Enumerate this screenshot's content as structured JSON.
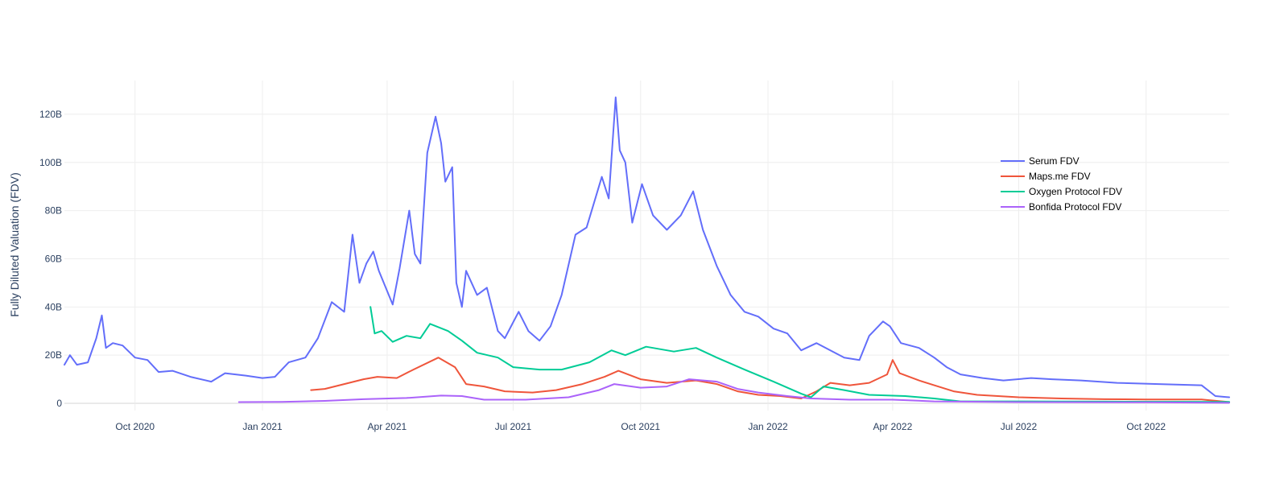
{
  "chart_data": {
    "type": "line",
    "title": "",
    "xlabel": "",
    "ylabel": "Fully Diluted Valuation (FDV)",
    "xlim": [
      "2020-08-11",
      "2022-11-30"
    ],
    "ylim": [
      -3000000000,
      134000000000
    ],
    "x_ticks": [
      {
        "date": "2020-10-01",
        "label": "Oct 2020"
      },
      {
        "date": "2021-01-01",
        "label": "Jan 2021"
      },
      {
        "date": "2021-04-01",
        "label": "Apr 2021"
      },
      {
        "date": "2021-07-01",
        "label": "Jul 2021"
      },
      {
        "date": "2021-10-01",
        "label": "Oct 2021"
      },
      {
        "date": "2022-01-01",
        "label": "Jan 2022"
      },
      {
        "date": "2022-04-01",
        "label": "Apr 2022"
      },
      {
        "date": "2022-07-01",
        "label": "Jul 2022"
      },
      {
        "date": "2022-10-01",
        "label": "Oct 2022"
      }
    ],
    "y_ticks": [
      {
        "value": 0,
        "label": "0"
      },
      {
        "value": 20000000000,
        "label": "20B"
      },
      {
        "value": 40000000000,
        "label": "40B"
      },
      {
        "value": 60000000000,
        "label": "60B"
      },
      {
        "value": 80000000000,
        "label": "80B"
      },
      {
        "value": 100000000000,
        "label": "100B"
      },
      {
        "value": 120000000000,
        "label": "120B"
      }
    ],
    "grid": true,
    "legend_position": "top-right",
    "series": [
      {
        "name": "Serum FDV",
        "color": "#636efa",
        "points": [
          [
            "2020-08-11",
            16000000000
          ],
          [
            "2020-08-15",
            20000000000
          ],
          [
            "2020-08-20",
            16000000000
          ],
          [
            "2020-08-28",
            17000000000
          ],
          [
            "2020-09-03",
            27000000000
          ],
          [
            "2020-09-07",
            36500000000
          ],
          [
            "2020-09-10",
            23000000000
          ],
          [
            "2020-09-15",
            25000000000
          ],
          [
            "2020-09-22",
            24000000000
          ],
          [
            "2020-10-01",
            19000000000
          ],
          [
            "2020-10-10",
            18000000000
          ],
          [
            "2020-10-18",
            13000000000
          ],
          [
            "2020-10-28",
            13500000000
          ],
          [
            "2020-11-10",
            11000000000
          ],
          [
            "2020-11-25",
            9000000000
          ],
          [
            "2020-12-05",
            12500000000
          ],
          [
            "2020-12-20",
            11500000000
          ],
          [
            "2021-01-01",
            10500000000
          ],
          [
            "2021-01-10",
            11000000000
          ],
          [
            "2021-01-20",
            17000000000
          ],
          [
            "2021-02-01",
            19000000000
          ],
          [
            "2021-02-10",
            27000000000
          ],
          [
            "2021-02-20",
            42000000000
          ],
          [
            "2021-03-01",
            38000000000
          ],
          [
            "2021-03-07",
            70000000000
          ],
          [
            "2021-03-12",
            50000000000
          ],
          [
            "2021-03-17",
            58000000000
          ],
          [
            "2021-03-22",
            63000000000
          ],
          [
            "2021-03-26",
            55000000000
          ],
          [
            "2021-04-05",
            41000000000
          ],
          [
            "2021-04-10",
            56000000000
          ],
          [
            "2021-04-17",
            80000000000
          ],
          [
            "2021-04-21",
            62000000000
          ],
          [
            "2021-04-25",
            58000000000
          ],
          [
            "2021-04-30",
            104000000000
          ],
          [
            "2021-05-06",
            119000000000
          ],
          [
            "2021-05-10",
            108000000000
          ],
          [
            "2021-05-13",
            92000000000
          ],
          [
            "2021-05-18",
            98000000000
          ],
          [
            "2021-05-21",
            50000000000
          ],
          [
            "2021-05-25",
            40000000000
          ],
          [
            "2021-05-28",
            55000000000
          ],
          [
            "2021-06-05",
            45000000000
          ],
          [
            "2021-06-12",
            48000000000
          ],
          [
            "2021-06-20",
            30000000000
          ],
          [
            "2021-06-25",
            27000000000
          ],
          [
            "2021-07-05",
            38000000000
          ],
          [
            "2021-07-12",
            30000000000
          ],
          [
            "2021-07-20",
            26000000000
          ],
          [
            "2021-07-28",
            32000000000
          ],
          [
            "2021-08-05",
            45000000000
          ],
          [
            "2021-08-15",
            70000000000
          ],
          [
            "2021-08-23",
            73000000000
          ],
          [
            "2021-09-03",
            94000000000
          ],
          [
            "2021-09-08",
            85000000000
          ],
          [
            "2021-09-13",
            127000000000
          ],
          [
            "2021-09-16",
            105000000000
          ],
          [
            "2021-09-20",
            100000000000
          ],
          [
            "2021-09-25",
            75000000000
          ],
          [
            "2021-10-02",
            91000000000
          ],
          [
            "2021-10-10",
            78000000000
          ],
          [
            "2021-10-20",
            72000000000
          ],
          [
            "2021-10-30",
            78000000000
          ],
          [
            "2021-11-08",
            88000000000
          ],
          [
            "2021-11-15",
            72000000000
          ],
          [
            "2021-11-25",
            57000000000
          ],
          [
            "2021-12-05",
            45000000000
          ],
          [
            "2021-12-15",
            38000000000
          ],
          [
            "2021-12-25",
            36000000000
          ],
          [
            "2022-01-05",
            31000000000
          ],
          [
            "2022-01-15",
            29000000000
          ],
          [
            "2022-01-25",
            22000000000
          ],
          [
            "2022-02-05",
            25000000000
          ],
          [
            "2022-02-15",
            22000000000
          ],
          [
            "2022-02-25",
            19000000000
          ],
          [
            "2022-03-08",
            18000000000
          ],
          [
            "2022-03-15",
            28000000000
          ],
          [
            "2022-03-25",
            34000000000
          ],
          [
            "2022-03-30",
            32000000000
          ],
          [
            "2022-04-07",
            25000000000
          ],
          [
            "2022-04-20",
            23000000000
          ],
          [
            "2022-05-01",
            19000000000
          ],
          [
            "2022-05-10",
            15000000000
          ],
          [
            "2022-05-20",
            12000000000
          ],
          [
            "2022-06-05",
            10500000000
          ],
          [
            "2022-06-20",
            9500000000
          ],
          [
            "2022-07-10",
            10500000000
          ],
          [
            "2022-07-25",
            10000000000
          ],
          [
            "2022-08-15",
            9500000000
          ],
          [
            "2022-09-10",
            8500000000
          ],
          [
            "2022-10-10",
            8000000000
          ],
          [
            "2022-11-10",
            7500000000
          ],
          [
            "2022-11-20",
            3000000000
          ],
          [
            "2022-11-30",
            2500000000
          ]
        ]
      },
      {
        "name": "Maps.me FDV",
        "color": "#ef553b",
        "points": [
          [
            "2021-02-05",
            5500000000
          ],
          [
            "2021-02-15",
            6000000000
          ],
          [
            "2021-03-01",
            8000000000
          ],
          [
            "2021-03-15",
            10000000000
          ],
          [
            "2021-03-25",
            11000000000
          ],
          [
            "2021-04-08",
            10500000000
          ],
          [
            "2021-04-20",
            14000000000
          ],
          [
            "2021-05-08",
            19000000000
          ],
          [
            "2021-05-20",
            15000000000
          ],
          [
            "2021-05-28",
            8000000000
          ],
          [
            "2021-06-10",
            7000000000
          ],
          [
            "2021-06-25",
            5000000000
          ],
          [
            "2021-07-15",
            4500000000
          ],
          [
            "2021-08-01",
            5500000000
          ],
          [
            "2021-08-20",
            8000000000
          ],
          [
            "2021-09-05",
            11000000000
          ],
          [
            "2021-09-15",
            13500000000
          ],
          [
            "2021-10-01",
            10000000000
          ],
          [
            "2021-10-20",
            8500000000
          ],
          [
            "2021-11-10",
            9500000000
          ],
          [
            "2021-11-25",
            8000000000
          ],
          [
            "2021-12-10",
            5000000000
          ],
          [
            "2021-12-25",
            3500000000
          ],
          [
            "2022-01-10",
            3000000000
          ],
          [
            "2022-01-25",
            2000000000
          ],
          [
            "2022-02-05",
            5000000000
          ],
          [
            "2022-02-15",
            8500000000
          ],
          [
            "2022-03-01",
            7500000000
          ],
          [
            "2022-03-15",
            8500000000
          ],
          [
            "2022-03-28",
            12000000000
          ],
          [
            "2022-04-01",
            18000000000
          ],
          [
            "2022-04-06",
            12500000000
          ],
          [
            "2022-04-20",
            9500000000
          ],
          [
            "2022-05-01",
            7500000000
          ],
          [
            "2022-05-15",
            5000000000
          ],
          [
            "2022-06-01",
            3500000000
          ],
          [
            "2022-07-01",
            2500000000
          ],
          [
            "2022-08-01",
            2000000000
          ],
          [
            "2022-09-01",
            1700000000
          ],
          [
            "2022-10-01",
            1600000000
          ],
          [
            "2022-11-10",
            1600000000
          ],
          [
            "2022-11-30",
            500000000
          ]
        ]
      },
      {
        "name": "Oxygen Protocol FDV",
        "color": "#00cc96",
        "points": [
          [
            "2021-03-20",
            40000000000
          ],
          [
            "2021-03-23",
            29000000000
          ],
          [
            "2021-03-28",
            30000000000
          ],
          [
            "2021-04-05",
            25500000000
          ],
          [
            "2021-04-15",
            28000000000
          ],
          [
            "2021-04-25",
            27000000000
          ],
          [
            "2021-05-02",
            33000000000
          ],
          [
            "2021-05-15",
            30000000000
          ],
          [
            "2021-05-25",
            26000000000
          ],
          [
            "2021-06-05",
            21000000000
          ],
          [
            "2021-06-20",
            19000000000
          ],
          [
            "2021-07-01",
            15000000000
          ],
          [
            "2021-07-20",
            14000000000
          ],
          [
            "2021-08-05",
            14000000000
          ],
          [
            "2021-08-25",
            17000000000
          ],
          [
            "2021-09-10",
            22000000000
          ],
          [
            "2021-09-20",
            20000000000
          ],
          [
            "2021-10-05",
            23500000000
          ],
          [
            "2021-10-25",
            21500000000
          ],
          [
            "2021-11-10",
            23000000000
          ],
          [
            "2021-11-25",
            19000000000
          ],
          [
            "2021-12-15",
            14000000000
          ],
          [
            "2022-01-05",
            9000000000
          ],
          [
            "2022-01-25",
            4000000000
          ],
          [
            "2022-02-01",
            2500000000
          ],
          [
            "2022-02-10",
            7000000000
          ],
          [
            "2022-02-25",
            5500000000
          ],
          [
            "2022-03-15",
            3500000000
          ],
          [
            "2022-04-10",
            3000000000
          ],
          [
            "2022-05-01",
            2000000000
          ],
          [
            "2022-05-20",
            800000000
          ],
          [
            "2022-07-01",
            800000000
          ],
          [
            "2022-09-01",
            700000000
          ],
          [
            "2022-11-30",
            600000000
          ]
        ]
      },
      {
        "name": "Bonfida Protocol FDV",
        "color": "#ab63fa",
        "points": [
          [
            "2020-12-15",
            500000000
          ],
          [
            "2021-01-15",
            600000000
          ],
          [
            "2021-02-15",
            1000000000
          ],
          [
            "2021-03-15",
            1700000000
          ],
          [
            "2021-04-15",
            2200000000
          ],
          [
            "2021-05-10",
            3200000000
          ],
          [
            "2021-05-25",
            3000000000
          ],
          [
            "2021-06-10",
            1500000000
          ],
          [
            "2021-07-10",
            1500000000
          ],
          [
            "2021-08-10",
            2500000000
          ],
          [
            "2021-09-01",
            5500000000
          ],
          [
            "2021-09-12",
            8000000000
          ],
          [
            "2021-10-01",
            6500000000
          ],
          [
            "2021-10-20",
            7000000000
          ],
          [
            "2021-11-05",
            10000000000
          ],
          [
            "2021-11-25",
            9000000000
          ],
          [
            "2021-12-10",
            6000000000
          ],
          [
            "2021-12-25",
            4500000000
          ],
          [
            "2022-01-15",
            3000000000
          ],
          [
            "2022-02-01",
            2000000000
          ],
          [
            "2022-03-01",
            1500000000
          ],
          [
            "2022-04-01",
            1500000000
          ],
          [
            "2022-05-01",
            800000000
          ],
          [
            "2022-07-01",
            500000000
          ],
          [
            "2022-10-01",
            400000000
          ],
          [
            "2022-11-30",
            200000000
          ]
        ]
      }
    ]
  }
}
